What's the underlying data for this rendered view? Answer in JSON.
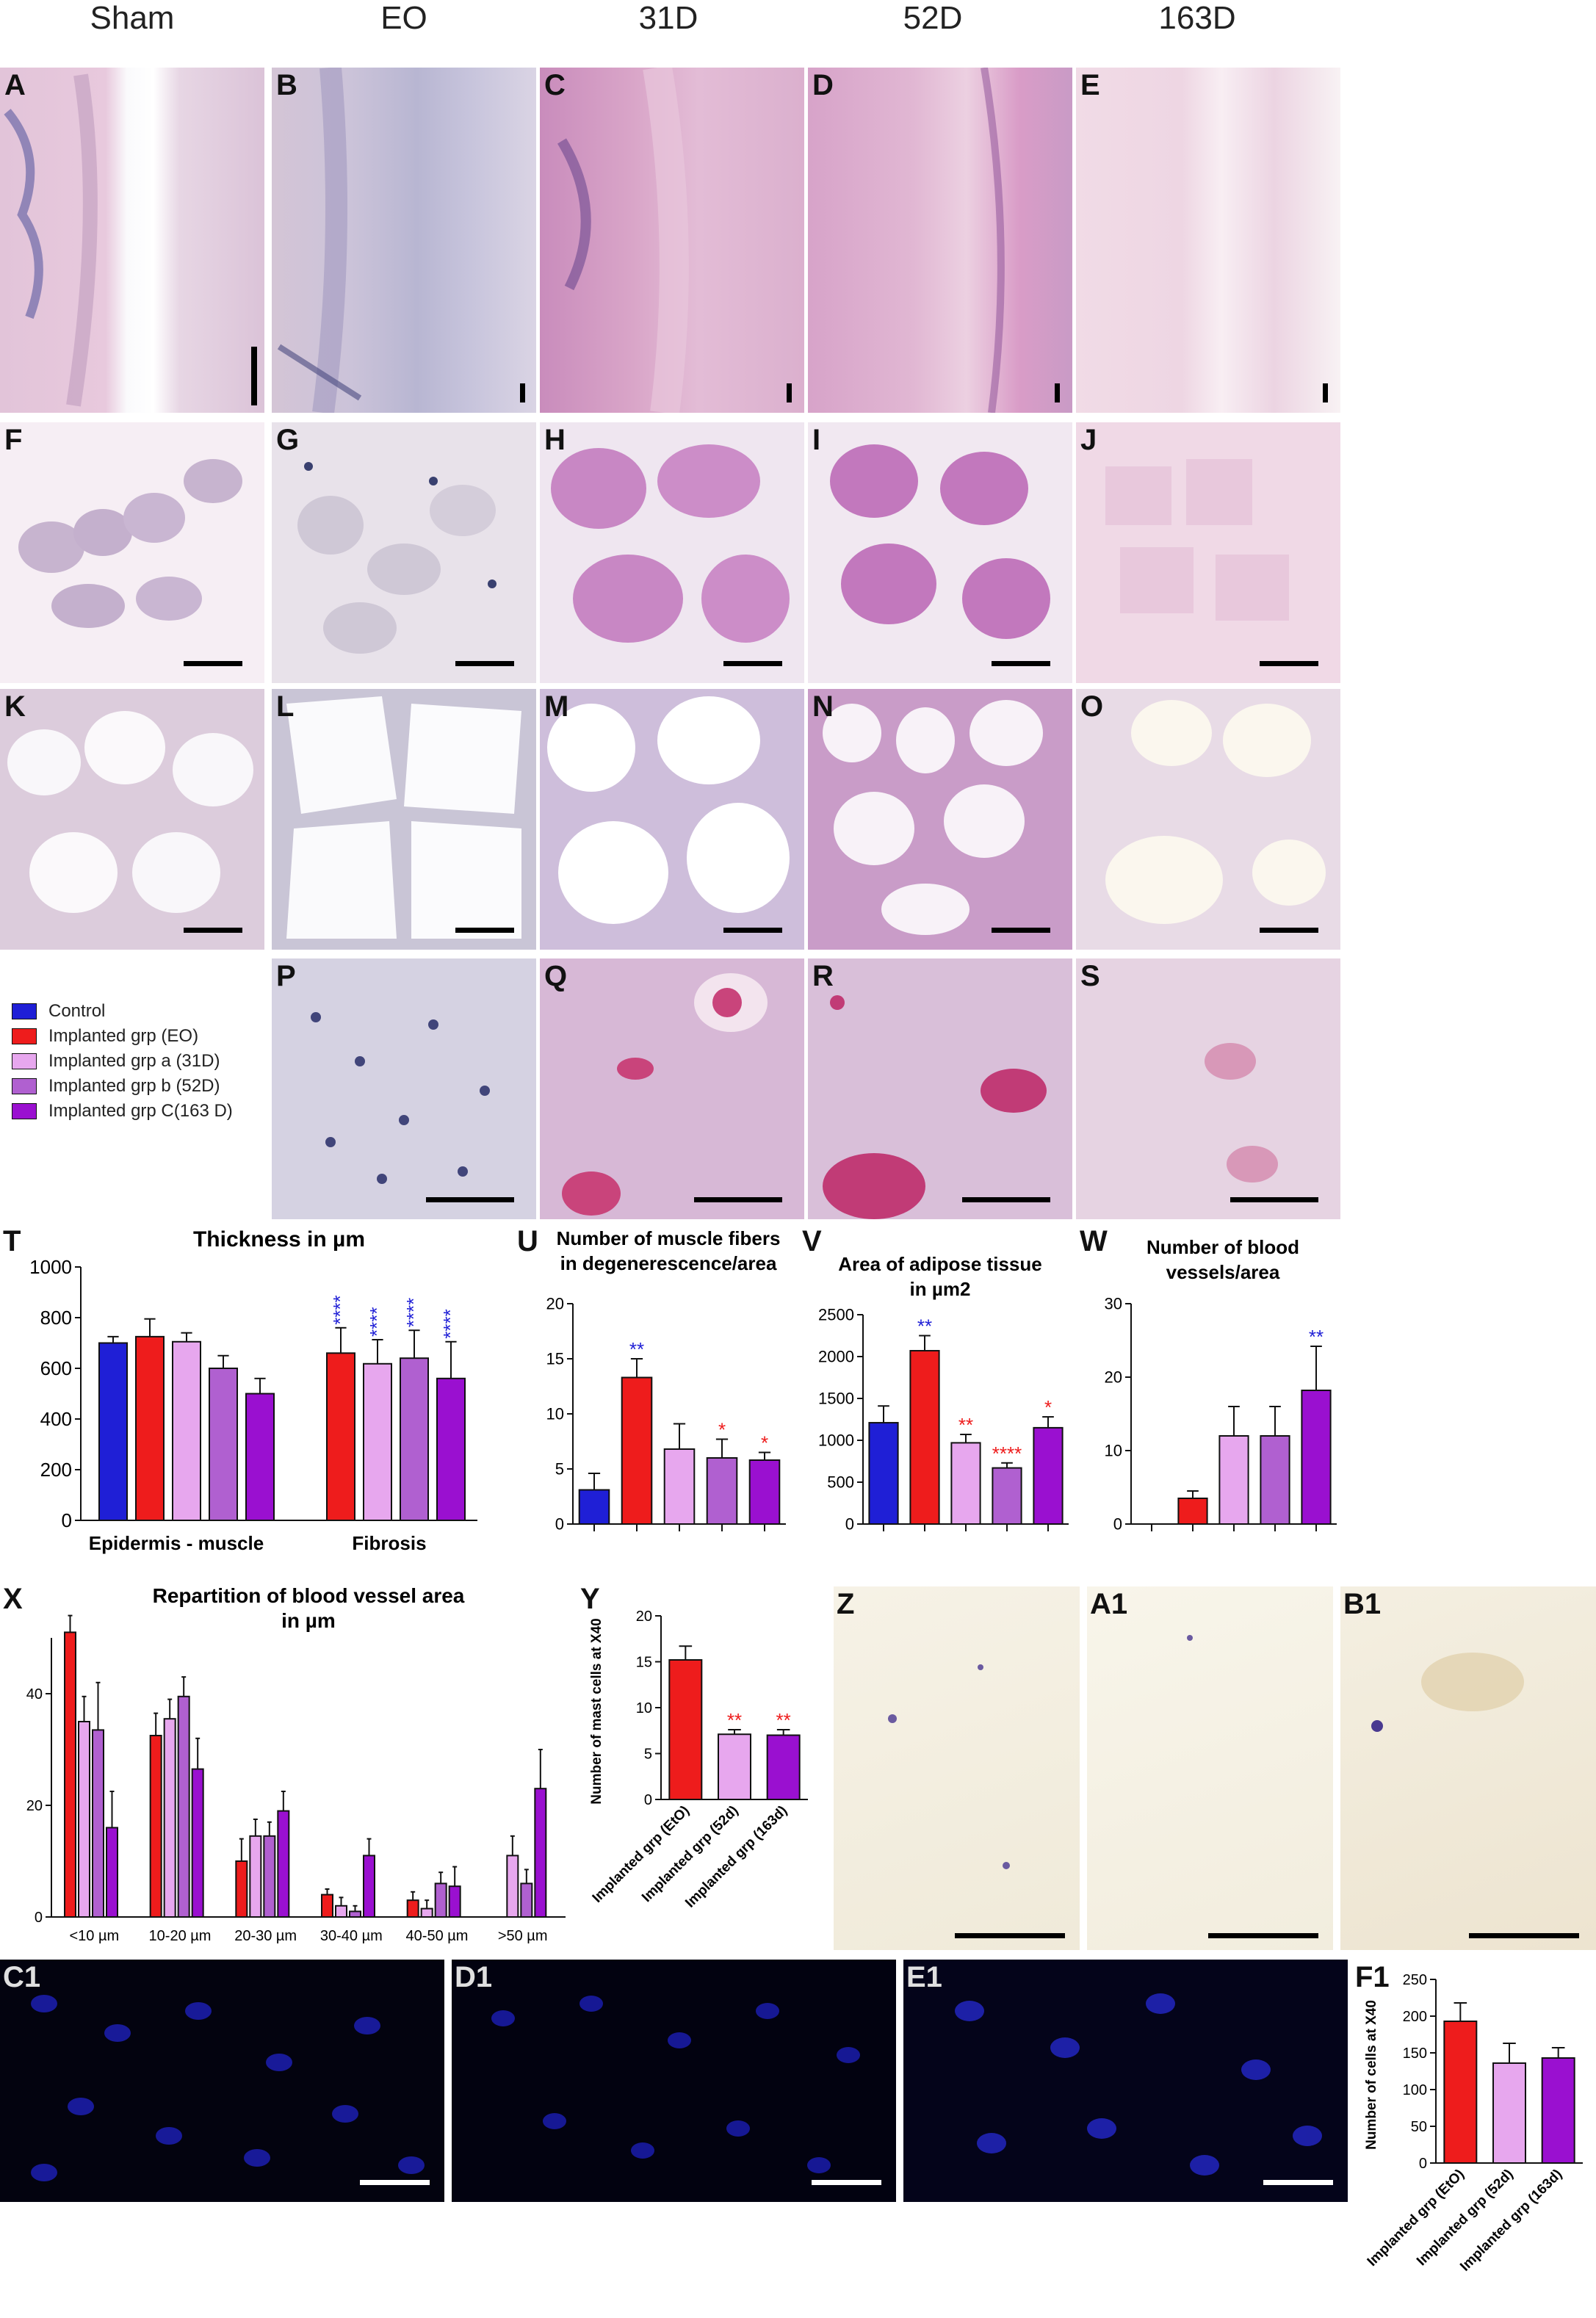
{
  "columns": [
    "Sham",
    "EO",
    "31D",
    "52D",
    "163D"
  ],
  "rows": {
    "row1": [
      "A",
      "B",
      "C",
      "D",
      "E"
    ],
    "row2": [
      "F",
      "G",
      "H",
      "I",
      "J"
    ],
    "row3": [
      "K",
      "L",
      "M",
      "N",
      "O"
    ],
    "row4": [
      "P",
      "Q",
      "R",
      "S"
    ],
    "ihc": [
      "Z",
      "A1",
      "B1"
    ],
    "fluo": [
      "C1",
      "D1",
      "E1"
    ]
  },
  "legend": [
    {
      "label": "Control",
      "color": "#1f1fd6"
    },
    {
      "label": "Implanted grp (EO)",
      "color": "#ee1c1c"
    },
    {
      "label": "Implanted grp a (31D)",
      "color": "#e7a7ee"
    },
    {
      "label": "Implanted grp b (52D)",
      "color": "#b060d0"
    },
    {
      "label": "Implanted grp C(163 D)",
      "color": "#9a10d0"
    }
  ],
  "chart_data": [
    {
      "id": "T",
      "type": "bar",
      "title": "Thickness in µm",
      "categories": [
        "Epidermis - muscle",
        "Fibrosis"
      ],
      "ylim": [
        0,
        1000
      ],
      "yticks": [
        0,
        200,
        400,
        600,
        800,
        1000
      ],
      "series": [
        {
          "name": "Control",
          "values": [
            700,
            null
          ],
          "err": [
            25,
            null
          ]
        },
        {
          "name": "Implanted grp (EO)",
          "values": [
            725,
            660
          ],
          "err": [
            70,
            100
          ]
        },
        {
          "name": "Implanted grp a (31D)",
          "values": [
            705,
            618
          ],
          "err": [
            35,
            95
          ]
        },
        {
          "name": "Implanted grp b (52D)",
          "values": [
            600,
            640
          ],
          "err": [
            50,
            110
          ]
        },
        {
          "name": "Implanted grp C(163 D)",
          "values": [
            500,
            560
          ],
          "err": [
            60,
            145
          ]
        }
      ],
      "stars": [
        {
          "label": "****",
          "color": "#1f1fd6"
        },
        {
          "label": "****",
          "color": "#1f1fd6"
        },
        {
          "label": "****",
          "color": "#1f1fd6"
        },
        {
          "label": "****",
          "color": "#1f1fd6"
        }
      ]
    },
    {
      "id": "U",
      "type": "bar",
      "title_lines": [
        "Number of muscle fibers",
        "in degenerescence/area"
      ],
      "ylim": [
        0,
        20
      ],
      "yticks": [
        0,
        5,
        10,
        15,
        20
      ],
      "values": [
        3.1,
        13.3,
        6.8,
        6.0,
        5.8
      ],
      "err": [
        1.5,
        1.7,
        2.3,
        1.7,
        0.7
      ],
      "stars": [
        null,
        {
          "label": "**",
          "color": "#1f1fd6"
        },
        null,
        {
          "label": "*",
          "color": "#ee1c1c"
        },
        {
          "label": "*",
          "color": "#ee1c1c"
        }
      ]
    },
    {
      "id": "V",
      "type": "bar",
      "title_lines": [
        "Area of adipose tissue",
        "in µm2"
      ],
      "ylim": [
        0,
        2500
      ],
      "yticks": [
        0,
        500,
        1000,
        1500,
        2000,
        2500
      ],
      "values": [
        1210,
        2070,
        970,
        670,
        1150
      ],
      "err": [
        200,
        180,
        100,
        60,
        130
      ],
      "stars": [
        null,
        {
          "label": "**",
          "color": "#1f1fd6"
        },
        {
          "label": "**",
          "color": "#ee1c1c"
        },
        {
          "label": "****",
          "color": "#ee1c1c"
        },
        {
          "label": "*",
          "color": "#ee1c1c"
        }
      ]
    },
    {
      "id": "W",
      "type": "bar",
      "title_lines": [
        "Number of blood",
        "vessels/area"
      ],
      "ylim": [
        0,
        30
      ],
      "yticks": [
        0,
        10,
        20,
        30
      ],
      "values": [
        0,
        3.5,
        12.0,
        12.0,
        18.2
      ],
      "err": [
        0,
        1.0,
        4.0,
        4.0,
        6.0
      ],
      "stars": [
        null,
        null,
        null,
        null,
        {
          "label": "**",
          "color": "#1f1fd6"
        }
      ]
    },
    {
      "id": "X",
      "type": "bar",
      "title_lines": [
        "Repartition of blood vessel area",
        "in µm"
      ],
      "categories": [
        "<10 µm",
        "10-20 µm",
        "20-30 µm",
        "30-40 µm",
        "40-50 µm",
        ">50 µm"
      ],
      "ylim": [
        0,
        50
      ],
      "yticks": [
        0,
        20,
        40
      ],
      "series": [
        {
          "name": "Implanted grp (EO)",
          "values": [
            51,
            32.5,
            10,
            4,
            3,
            0
          ],
          "err": [
            3,
            4,
            4,
            1,
            1.5,
            0
          ]
        },
        {
          "name": "Implanted grp a (31D)",
          "values": [
            35,
            35.5,
            14.5,
            2,
            1.5,
            11
          ],
          "err": [
            4.5,
            3.5,
            3,
            1.5,
            1.5,
            3.5
          ]
        },
        {
          "name": "Implanted grp b (52D)",
          "values": [
            33.5,
            39.5,
            14.5,
            1,
            6,
            6
          ],
          "err": [
            8.5,
            3.5,
            2.5,
            1,
            2,
            2.5
          ]
        },
        {
          "name": "Implanted grp C(163 D)",
          "values": [
            16,
            26.5,
            19,
            11,
            5.5,
            23
          ],
          "err": [
            6.5,
            5.5,
            3.5,
            3,
            3.5,
            7
          ]
        }
      ]
    },
    {
      "id": "Y",
      "type": "bar",
      "ylabel": "Number of mast cells at X40",
      "categories": [
        "Implanted grp (EtO)",
        "Implanted grp (52d)",
        "Implanted grp (163d)"
      ],
      "ylim": [
        0,
        20
      ],
      "yticks": [
        0,
        5,
        10,
        15,
        20
      ],
      "values": [
        15.2,
        7.1,
        7.0
      ],
      "err": [
        1.5,
        0.5,
        0.6
      ],
      "stars": [
        null,
        {
          "label": "**",
          "color": "#ee1c1c"
        },
        {
          "label": "**",
          "color": "#ee1c1c"
        }
      ]
    },
    {
      "id": "F1",
      "type": "bar",
      "ylabel": "Number of cells at X40",
      "categories": [
        "Implanted grp (EtO)",
        "Implanted grp (52d)",
        "Implanted grp (163d)"
      ],
      "ylim": [
        0,
        250
      ],
      "yticks": [
        0,
        50,
        100,
        150,
        200,
        250
      ],
      "values": [
        193,
        136,
        143
      ],
      "err": [
        25,
        27,
        14
      ]
    }
  ]
}
